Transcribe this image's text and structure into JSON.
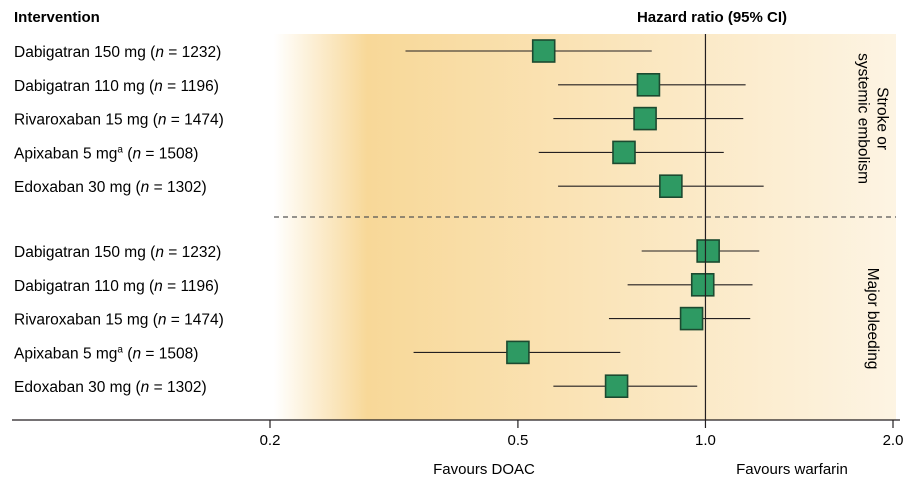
{
  "chart_data": {
    "type": "forest",
    "header_left": "Intervention",
    "header_right": "Hazard ratio (95% CI)",
    "x_scale": "log",
    "xlim": [
      0.2,
      2.0
    ],
    "x_ticks": [
      "0.2",
      "0.5",
      "1.0",
      "2.0"
    ],
    "reference_line": 1.0,
    "favours_left": "Favours DOAC",
    "favours_right": "Favours warfarin",
    "colors": {
      "marker": "#2e9a63",
      "marker_border": "#1c4a30",
      "shade": "#f8d898",
      "line": "#231f20"
    },
    "groups": [
      {
        "name": "Stroke or systemic embolism",
        "name_lines": [
          "Stroke or",
          "systemic embolism"
        ],
        "rows": [
          {
            "drug": "Dabigatran 150 mg (",
            "sup": "",
            "n_text": " = 1232)",
            "hr": 0.55,
            "lo": 0.33,
            "hi": 0.82
          },
          {
            "drug": "Dabigatran 110 mg (",
            "sup": "",
            "n_text": " = 1196)",
            "hr": 0.81,
            "lo": 0.58,
            "hi": 1.16
          },
          {
            "drug": "Rivaroxaban 15 mg (",
            "sup": "",
            "n_text": " = 1474)",
            "hr": 0.8,
            "lo": 0.57,
            "hi": 1.15
          },
          {
            "drug": "Apixaban 5 mg",
            "sup": "a",
            "n_text": " = 1508)",
            "hr": 0.74,
            "lo": 0.54,
            "hi": 1.07
          },
          {
            "drug": "Edoxaban 30 mg (",
            "sup": "",
            "n_text": " = 1302)",
            "hr": 0.88,
            "lo": 0.58,
            "hi": 1.24
          }
        ]
      },
      {
        "name": "Major bleeding",
        "name_lines": [
          "Major bleeding"
        ],
        "rows": [
          {
            "drug": "Dabigatran 150 mg (",
            "sup": "",
            "n_text": " = 1232)",
            "hr": 1.01,
            "lo": 0.79,
            "hi": 1.22
          },
          {
            "drug": "Dabigatran 110 mg (",
            "sup": "",
            "n_text": " = 1196)",
            "hr": 0.99,
            "lo": 0.75,
            "hi": 1.19
          },
          {
            "drug": "Rivaroxaban 15 mg (",
            "sup": "",
            "n_text": " = 1474)",
            "hr": 0.95,
            "lo": 0.7,
            "hi": 1.18
          },
          {
            "drug": "Apixaban 5 mg",
            "sup": "a",
            "n_text": " = 1508)",
            "hr": 0.5,
            "lo": 0.34,
            "hi": 0.73
          },
          {
            "drug": "Edoxaban 30 mg (",
            "sup": "",
            "n_text": " = 1302)",
            "hr": 0.72,
            "lo": 0.57,
            "hi": 0.97
          }
        ]
      }
    ]
  }
}
